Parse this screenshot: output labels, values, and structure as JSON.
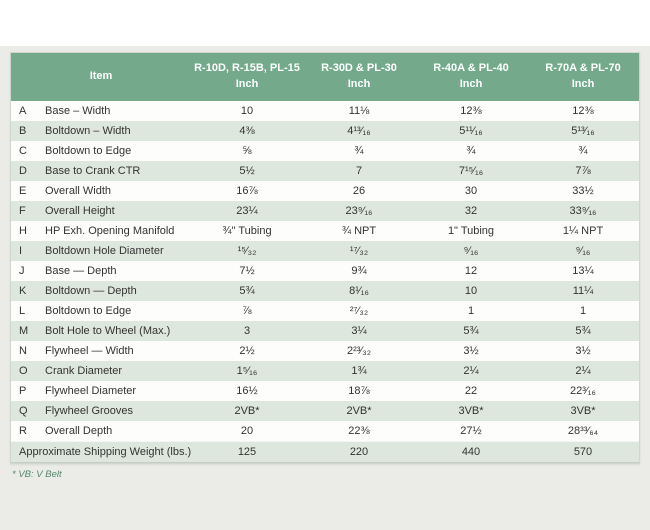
{
  "colors": {
    "header_green": "#74a98b",
    "stripe_green": "#dee7de",
    "page_background": "#ebece8",
    "footnote_green": "#4d8a6b",
    "text": "#333333"
  },
  "table": {
    "header": {
      "item_label": "Item",
      "columns": [
        {
          "model": "R-10D, R-15B, PL-15",
          "unit": "Inch"
        },
        {
          "model": "R-30D & PL-30",
          "unit": "Inch"
        },
        {
          "model": "R-40A & PL-40",
          "unit": "Inch"
        },
        {
          "model": "R-70A & PL-70",
          "unit": "Inch"
        }
      ]
    },
    "rows": [
      {
        "letter": "A",
        "label": "Base – Width",
        "values": [
          "10",
          "11⅛",
          "12⅜",
          "12⅜"
        ]
      },
      {
        "letter": "B",
        "label": "Boltdown – Width",
        "values": [
          "4⅜",
          "4¹³⁄₁₆",
          "5¹¹⁄₁₆",
          "5¹³⁄₁₆"
        ]
      },
      {
        "letter": "C",
        "label": "Boltdown to Edge",
        "values": [
          "⅝",
          "¾",
          "¾",
          "¾"
        ]
      },
      {
        "letter": "D",
        "label": "Base to Crank CTR",
        "values": [
          "5½",
          "7",
          "7¹⁵⁄₁₆",
          "7⅞"
        ]
      },
      {
        "letter": "E",
        "label": "Overall Width",
        "values": [
          "16⅞",
          "26",
          "30",
          "33½"
        ]
      },
      {
        "letter": "F",
        "label": "Overall Height",
        "values": [
          "23¼",
          "23⁹⁄₁₆",
          "32",
          "33⁹⁄₁₆"
        ]
      },
      {
        "letter": "H",
        "label": "HP Exh. Opening Manifold",
        "values": [
          "¾\" Tubing",
          "¾ NPT",
          "1\" Tubing",
          "1¼ NPT"
        ]
      },
      {
        "letter": "I",
        "label": "Boltdown Hole Diameter",
        "values": [
          "¹⁵⁄₃₂",
          "¹⁷⁄₃₂",
          "⁹⁄₁₆",
          "⁹⁄₁₆"
        ]
      },
      {
        "letter": "J",
        "label": "Base — Depth",
        "values": [
          "7½",
          "9¾",
          "12",
          "13¼"
        ]
      },
      {
        "letter": "K",
        "label": "Boltdown — Depth",
        "values": [
          "5¾",
          "8¹⁄₁₆",
          "10",
          "11¼"
        ]
      },
      {
        "letter": "L",
        "label": "Boltdown to Edge",
        "values": [
          "⅞",
          "²⁷⁄₃₂",
          "1",
          "1"
        ]
      },
      {
        "letter": "M",
        "label": "Bolt Hole to Wheel (Max.)",
        "values": [
          "3",
          "3¼",
          "5¾",
          "5¾"
        ]
      },
      {
        "letter": "N",
        "label": "Flywheel — Width",
        "values": [
          "2½",
          "2²³⁄₃₂",
          "3½",
          "3½"
        ]
      },
      {
        "letter": "O",
        "label": "Crank Diameter",
        "values": [
          "1⁵⁄₁₆",
          "1¾",
          "2¼",
          "2¼"
        ]
      },
      {
        "letter": "P",
        "label": "Flywheel Diameter",
        "values": [
          "16½",
          "18⅞",
          "22",
          "22³⁄₁₆"
        ]
      },
      {
        "letter": "Q",
        "label": "Flywheel Grooves",
        "values": [
          "2VB*",
          "2VB*",
          "3VB*",
          "3VB*"
        ]
      },
      {
        "letter": "R",
        "label": "Overall Depth",
        "values": [
          "20",
          "22⅜",
          "27½",
          "28³³⁄₆₄"
        ]
      }
    ],
    "footer_row": {
      "label": "Approximate Shipping Weight (lbs.)",
      "values": [
        "125",
        "220",
        "440",
        "570"
      ]
    }
  },
  "footnote": "* VB: V Belt"
}
